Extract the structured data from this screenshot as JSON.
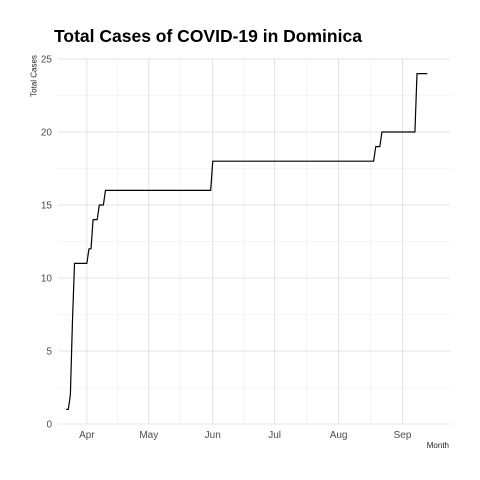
{
  "chart_data": {
    "type": "line",
    "title": "Total Cases of COVID-19 in Dominica",
    "xlabel": "Month",
    "ylabel": "Total Cases",
    "x_ticks": [
      {
        "label": "Apr",
        "date": "2020-04-01"
      },
      {
        "label": "May",
        "date": "2020-05-01"
      },
      {
        "label": "Jun",
        "date": "2020-06-01"
      },
      {
        "label": "Jul",
        "date": "2020-07-01"
      },
      {
        "label": "Aug",
        "date": "2020-08-01"
      },
      {
        "label": "Sep",
        "date": "2020-09-01"
      }
    ],
    "y_ticks": [
      0,
      5,
      10,
      15,
      20,
      25
    ],
    "ylim": [
      0,
      25
    ],
    "xlim": [
      "2020-03-18",
      "2020-09-24"
    ],
    "grid": true,
    "line_color": "#000000",
    "series": [
      {
        "points": [
          {
            "x": "2020-03-22",
            "y": 1
          },
          {
            "x": "2020-03-23",
            "y": 1
          },
          {
            "x": "2020-03-24",
            "y": 2
          },
          {
            "x": "2020-03-25",
            "y": 7
          },
          {
            "x": "2020-03-26",
            "y": 11
          },
          {
            "x": "2020-04-01",
            "y": 11
          },
          {
            "x": "2020-04-02",
            "y": 12
          },
          {
            "x": "2020-04-03",
            "y": 12
          },
          {
            "x": "2020-04-04",
            "y": 14
          },
          {
            "x": "2020-04-06",
            "y": 14
          },
          {
            "x": "2020-04-07",
            "y": 15
          },
          {
            "x": "2020-04-09",
            "y": 15
          },
          {
            "x": "2020-04-10",
            "y": 16
          },
          {
            "x": "2020-05-31",
            "y": 16
          },
          {
            "x": "2020-06-01",
            "y": 18
          },
          {
            "x": "2020-08-18",
            "y": 18
          },
          {
            "x": "2020-08-19",
            "y": 19
          },
          {
            "x": "2020-08-21",
            "y": 19
          },
          {
            "x": "2020-08-22",
            "y": 20
          },
          {
            "x": "2020-09-07",
            "y": 20
          },
          {
            "x": "2020-09-08",
            "y": 24
          },
          {
            "x": "2020-09-13",
            "y": 24
          }
        ]
      }
    ]
  }
}
